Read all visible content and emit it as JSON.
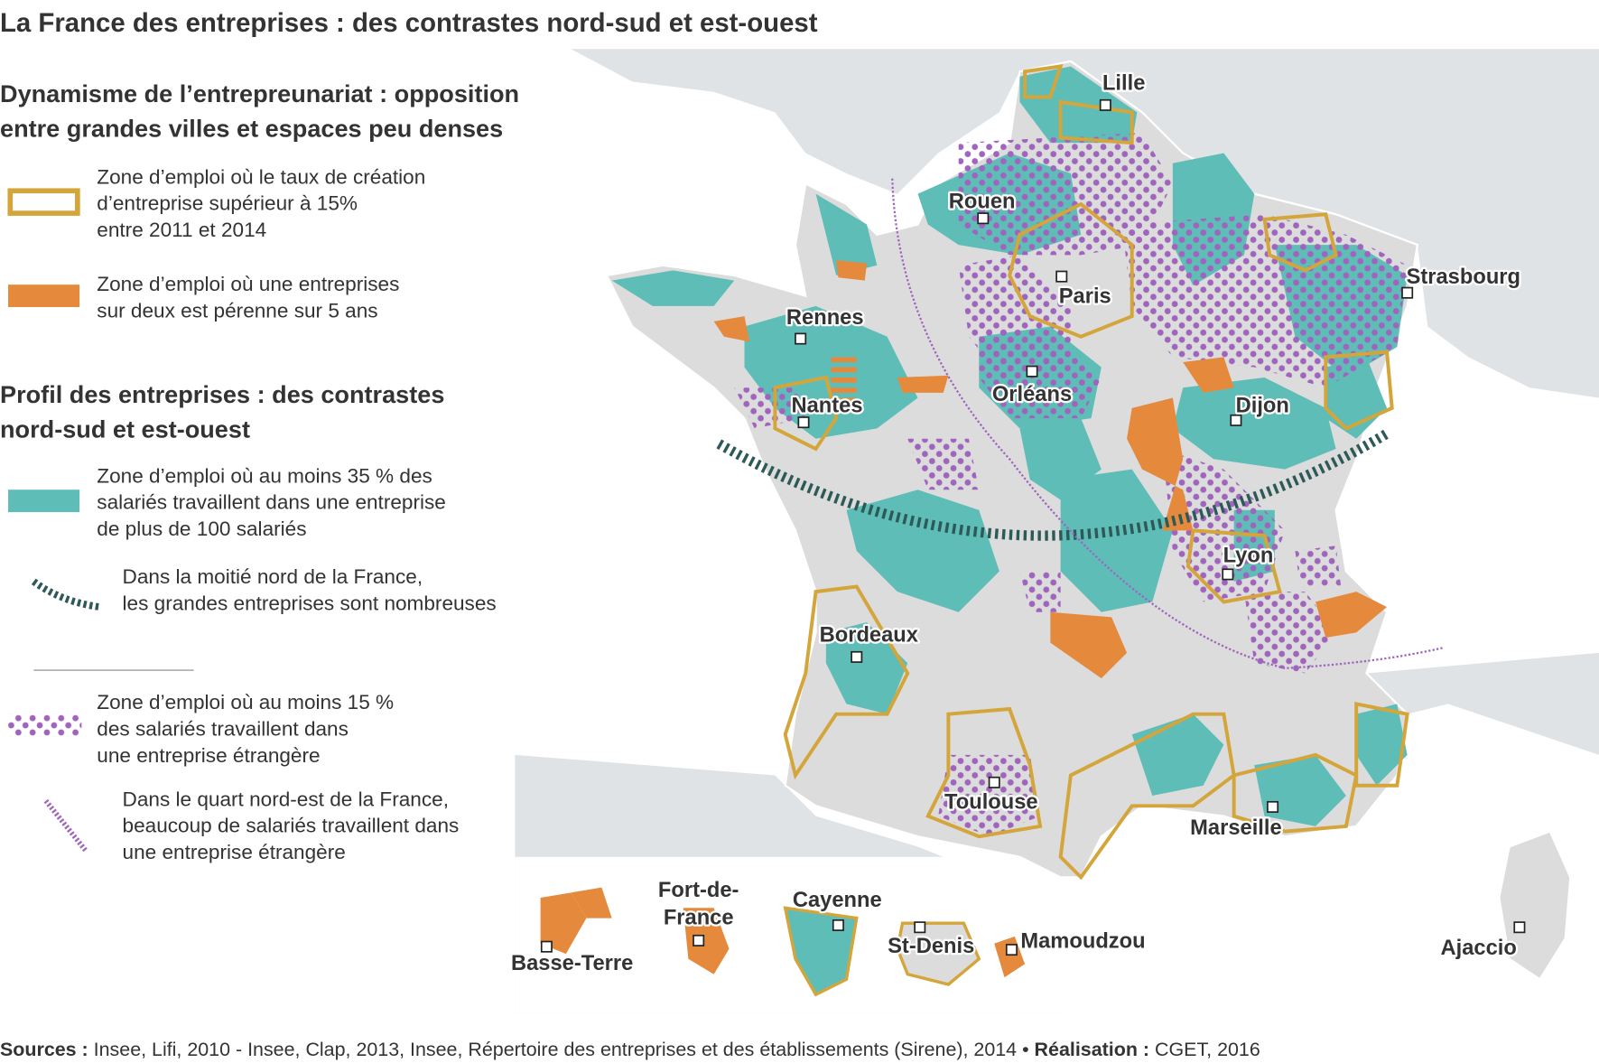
{
  "title": "La France des entreprises : des contrastes nord-sud et est-ouest",
  "legend": {
    "section1": {
      "heading": [
        "Dynamisme de l’entrepreunariat : opposition",
        "entre grandes villes et espaces peu denses"
      ],
      "items": [
        {
          "lines": [
            "Zone d’emploi où le taux de création",
            "d’entreprise supérieur à 15%",
            "entre 2011 et 2014"
          ]
        },
        {
          "lines": [
            "Zone d’emploi où une entreprises",
            "sur deux est pérenne sur 5 ans"
          ]
        }
      ]
    },
    "section2": {
      "heading": [
        "Profil des entreprises : des contrastes",
        "nord-sud et est-ouest"
      ],
      "items": [
        {
          "lines": [
            "Zone d’emploi où au moins 35 % des",
            "salariés travaillent dans une entreprise",
            "de plus de 100 salariés"
          ]
        },
        {
          "lines": [
            "Dans la moitié nord de la France,",
            "les grandes entreprises sont nombreuses"
          ]
        },
        {
          "lines": [
            "Zone d’emploi où au moins 15 %",
            "des salariés travaillent dans",
            "une entreprise étrangère"
          ]
        },
        {
          "lines": [
            "Dans le quart nord-est de la France,",
            "beaucoup de salariés travaillent dans",
            "une entreprise étrangère"
          ]
        }
      ]
    }
  },
  "cities": [
    {
      "lines": [
        "Lille"
      ]
    },
    {
      "lines": [
        "Rouen"
      ]
    },
    {
      "lines": [
        "Paris"
      ]
    },
    {
      "lines": [
        "Strasbourg"
      ]
    },
    {
      "lines": [
        "Rennes"
      ]
    },
    {
      "lines": [
        "Nantes"
      ]
    },
    {
      "lines": [
        "Orléans"
      ]
    },
    {
      "lines": [
        "Dijon"
      ]
    },
    {
      "lines": [
        "Lyon"
      ]
    },
    {
      "lines": [
        "Bordeaux"
      ]
    },
    {
      "lines": [
        "Toulouse"
      ]
    },
    {
      "lines": [
        "Marseille"
      ]
    },
    {
      "lines": [
        "Ajaccio"
      ]
    },
    {
      "lines": [
        "Basse-Terre"
      ]
    },
    {
      "lines": [
        "Fort-de-",
        "France"
      ]
    },
    {
      "lines": [
        "Cayenne"
      ]
    },
    {
      "lines": [
        "St-Denis"
      ]
    },
    {
      "lines": [
        "Mamoudzou"
      ]
    }
  ],
  "sources": {
    "label": "Sources :",
    "text": "Insee, Lifi, 2010 - Insee, Clap, 2013, Insee, Répertoire des entreprises et des établissements (Sirene), 2014 •",
    "credit_label": "Réalisation :",
    "credit": "CGET, 2016"
  }
}
